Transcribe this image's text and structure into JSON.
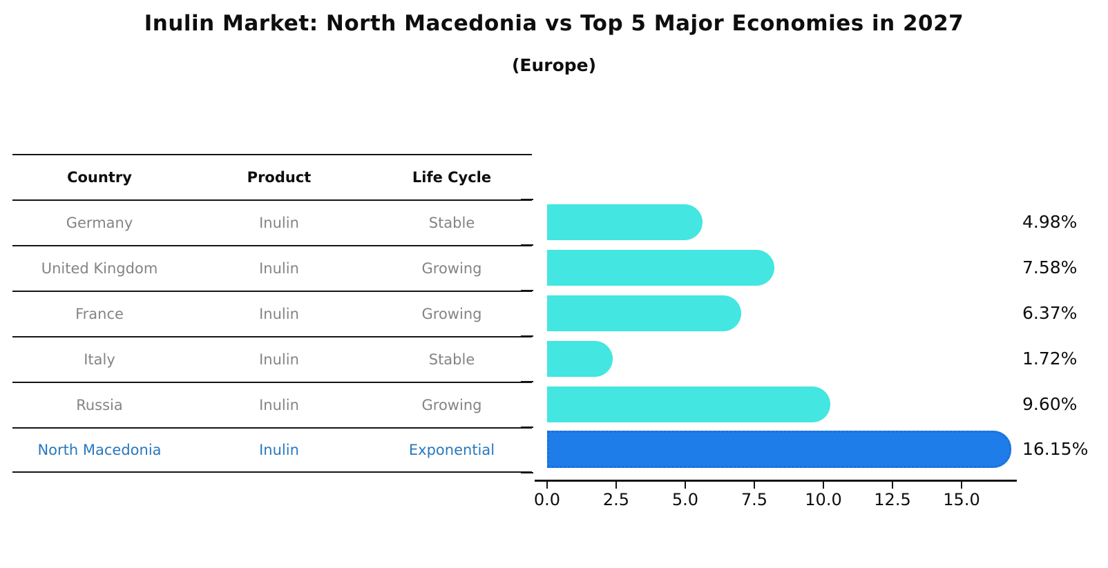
{
  "title": "Inulin Market: North Macedonia vs Top 5 Major Economies in 2027",
  "subtitle": "(Europe)",
  "table": {
    "headers": [
      "Country",
      "Product",
      "Life Cycle"
    ],
    "rows": [
      {
        "country": "Germany",
        "product": "Inulin",
        "life_cycle": "Stable",
        "highlight": false
      },
      {
        "country": "United Kingdom",
        "product": "Inulin",
        "life_cycle": "Growing",
        "highlight": false
      },
      {
        "country": "France",
        "product": "Inulin",
        "life_cycle": "Growing",
        "highlight": false
      },
      {
        "country": "Italy",
        "product": "Inulin",
        "life_cycle": "Stable",
        "highlight": false
      },
      {
        "country": "Russia",
        "product": "Inulin",
        "life_cycle": "Growing",
        "highlight": false
      },
      {
        "country": "North Macedonia",
        "product": "Inulin",
        "life_cycle": "Exponential",
        "highlight": true
      }
    ]
  },
  "chart_data": {
    "type": "bar",
    "orientation": "horizontal",
    "title": "Inulin Market: North Macedonia vs Top 5 Major Economies in 2027",
    "subtitle": "(Europe)",
    "categories": [
      "Germany",
      "United Kingdom",
      "France",
      "Italy",
      "Russia",
      "North Macedonia"
    ],
    "values": [
      4.98,
      7.58,
      6.37,
      1.72,
      9.6,
      16.15
    ],
    "value_labels": [
      "4.98%",
      "7.58%",
      "6.37%",
      "1.72%",
      "9.60%",
      "16.15%"
    ],
    "highlight_index": 5,
    "xlabel": "",
    "ylabel": "",
    "xlim": [
      0,
      17.0
    ],
    "x_ticks": [
      0.0,
      2.5,
      5.0,
      7.5,
      10.0,
      12.5,
      15.0
    ],
    "x_tick_labels": [
      "0.0",
      "2.5",
      "5.0",
      "7.5",
      "10.0",
      "12.5",
      "15.0"
    ],
    "grid": false,
    "legend": false,
    "bar_color": "#43e6e0",
    "highlight_bar_color": "#1e7de8",
    "highlight_text_color": "#2878be",
    "text_color_muted": "#848484"
  }
}
